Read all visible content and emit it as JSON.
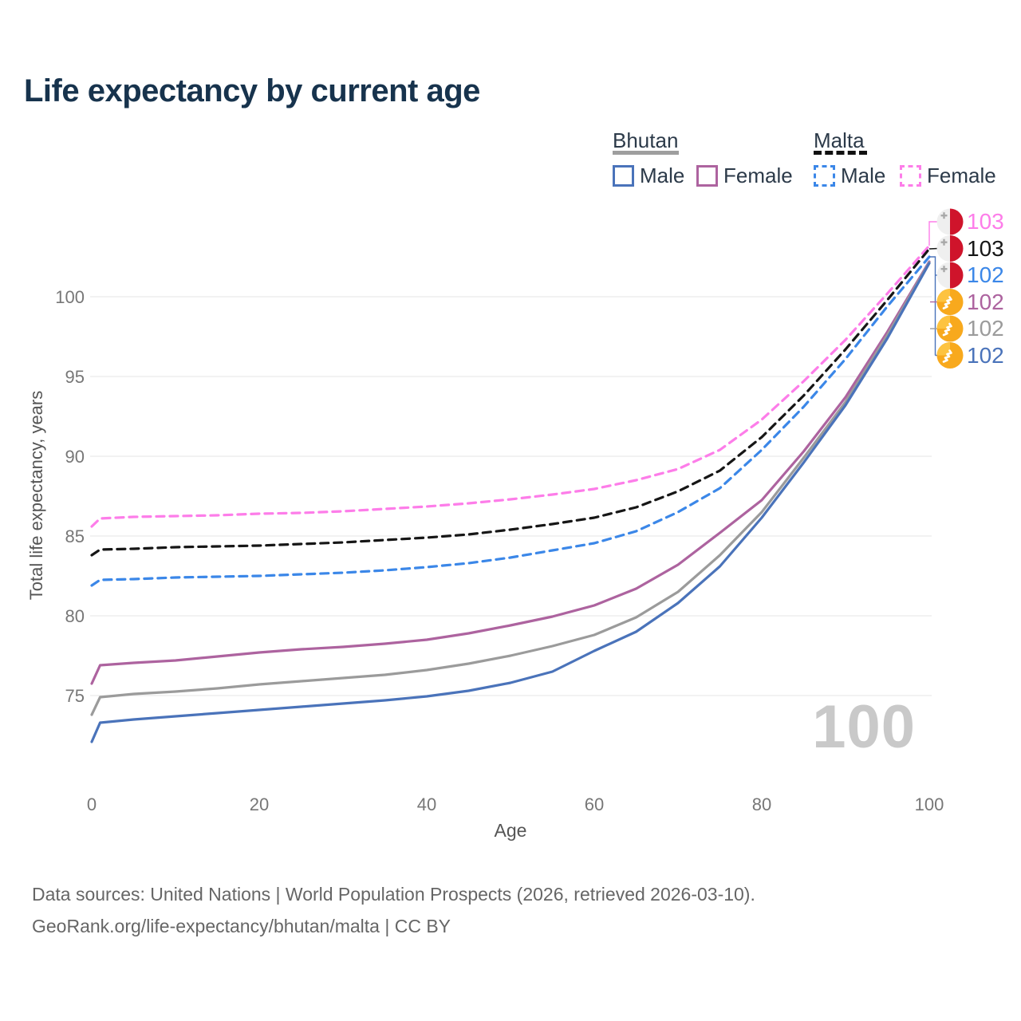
{
  "title": "Life expectancy by current age",
  "legend": {
    "groups": [
      {
        "label": "Bhutan",
        "line_style": "solid",
        "underline_color": "#9e9e9e",
        "items": [
          {
            "label": "Male",
            "color": "#4a73ba"
          },
          {
            "label": "Female",
            "color": "#ad639f"
          }
        ]
      },
      {
        "label": "Malta",
        "line_style": "dashed",
        "underline_color": "#111111",
        "items": [
          {
            "label": "Male",
            "color": "#3b87e8"
          },
          {
            "label": "Female",
            "color": "#fd7de9"
          }
        ]
      }
    ]
  },
  "chart_data": {
    "type": "line",
    "title": "Life expectancy by current age",
    "xlabel": "Age",
    "ylabel": "Total life expectancy, years",
    "x_ticks": [
      0,
      20,
      40,
      60,
      80,
      100
    ],
    "y_ticks": [
      75,
      80,
      85,
      90,
      95,
      100
    ],
    "xlim": [
      0,
      100
    ],
    "ylim": [
      71.5,
      104.5
    ],
    "grid": "horizontal-only",
    "legend_position": "top-right",
    "watermark": "100",
    "x": [
      0,
      1,
      5,
      10,
      15,
      20,
      25,
      30,
      35,
      40,
      45,
      50,
      55,
      60,
      65,
      70,
      75,
      80,
      85,
      90,
      95,
      100
    ],
    "series": [
      {
        "name": "Malta Female",
        "color": "#fd7de9",
        "dash": true,
        "flag": "malta",
        "values": [
          85.6,
          86.1,
          86.2,
          86.25,
          86.3,
          86.4,
          86.45,
          86.55,
          86.7,
          86.85,
          87.05,
          87.3,
          87.6,
          87.95,
          88.5,
          89.2,
          90.4,
          92.3,
          94.7,
          97.3,
          100.2,
          103.2
        ],
        "end_label": "103"
      },
      {
        "name": "Malta",
        "color": "#161616",
        "dash": true,
        "flag": "malta",
        "values": [
          83.8,
          84.15,
          84.2,
          84.3,
          84.35,
          84.4,
          84.5,
          84.6,
          84.75,
          84.9,
          85.1,
          85.4,
          85.75,
          86.15,
          86.8,
          87.8,
          89.1,
          91.2,
          93.8,
          96.7,
          99.8,
          103.0
        ],
        "end_label": "103"
      },
      {
        "name": "Malta Male",
        "color": "#3b87e8",
        "dash": true,
        "flag": "malta",
        "values": [
          81.9,
          82.25,
          82.3,
          82.4,
          82.45,
          82.5,
          82.6,
          82.7,
          82.85,
          83.05,
          83.3,
          83.65,
          84.1,
          84.55,
          85.3,
          86.5,
          88.0,
          90.4,
          93.1,
          96.1,
          99.4,
          102.5
        ],
        "end_label": "102"
      },
      {
        "name": "Bhutan Female",
        "color": "#ad639f",
        "dash": false,
        "flag": "bhutan",
        "values": [
          75.75,
          76.9,
          77.05,
          77.2,
          77.45,
          77.7,
          77.9,
          78.05,
          78.25,
          78.5,
          78.9,
          79.4,
          79.95,
          80.65,
          81.7,
          83.2,
          85.2,
          87.25,
          90.3,
          93.7,
          97.8,
          102.2
        ],
        "end_label": "102"
      },
      {
        "name": "Bhutan",
        "color": "#9b9b9b",
        "dash": false,
        "flag": "bhutan",
        "values": [
          73.8,
          74.9,
          75.1,
          75.25,
          75.45,
          75.7,
          75.9,
          76.1,
          76.3,
          76.6,
          77.0,
          77.5,
          78.1,
          78.8,
          79.9,
          81.5,
          83.8,
          86.5,
          89.9,
          93.4,
          97.6,
          102.15
        ],
        "end_label": "102"
      },
      {
        "name": "Bhutan Male",
        "color": "#4a73ba",
        "dash": false,
        "flag": "bhutan",
        "values": [
          72.1,
          73.3,
          73.5,
          73.7,
          73.9,
          74.1,
          74.3,
          74.5,
          74.7,
          74.95,
          75.3,
          75.8,
          76.5,
          77.8,
          79.0,
          80.8,
          83.1,
          86.15,
          89.6,
          93.2,
          97.4,
          102.1
        ],
        "end_label": "102"
      }
    ],
    "flag_colors": {
      "malta": {
        "white": "#efefef",
        "red": "#cf142b",
        "cross": "#a9a9a9"
      },
      "bhutan": {
        "orange": "#f8a91d",
        "light_wedge": "#fdc340",
        "dragon": "#ffffff"
      }
    }
  },
  "footer": {
    "line1": "Data sources: United Nations | World Population Prospects (2026, retrieved 2026-03-10).",
    "line2": "GeoRank.org/life-expectancy/bhutan/malta | CC BY"
  }
}
